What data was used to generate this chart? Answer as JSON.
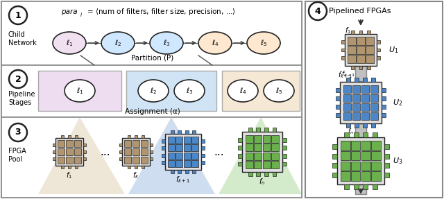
{
  "bg_color": "#ffffff",
  "tan_color": "#b0956e",
  "blue_color": "#4a86c8",
  "green_color": "#6ab04c",
  "stage1_bg": "#eeddf0",
  "stage2_bg": "#d0e4f5",
  "stage3_bg": "#f5e8d5",
  "outline_color": "#222222",
  "gray_color": "#999999",
  "child_network_label": "Child\nNetwork",
  "pipeline_stages_label": "Pipeline\nStages",
  "fpga_pool_label": "FPGA\nPool",
  "pipelined_fpgas_label": "Pipelined FPGAs",
  "partition_label": "Partition (P)",
  "assignment_label": "Assignment (α)",
  "layer_labels": [
    "$\\ell_1$",
    "$\\ell_2$",
    "$\\ell_3$",
    "$\\ell_4$",
    "$\\ell_5$"
  ],
  "stage1_layers": [
    "$\\ell_1$"
  ],
  "stage2_layers": [
    "$\\ell_2$",
    "$\\ell_3$"
  ],
  "stage3_layers": [
    "$\\ell_4$",
    "$\\ell_5$"
  ]
}
